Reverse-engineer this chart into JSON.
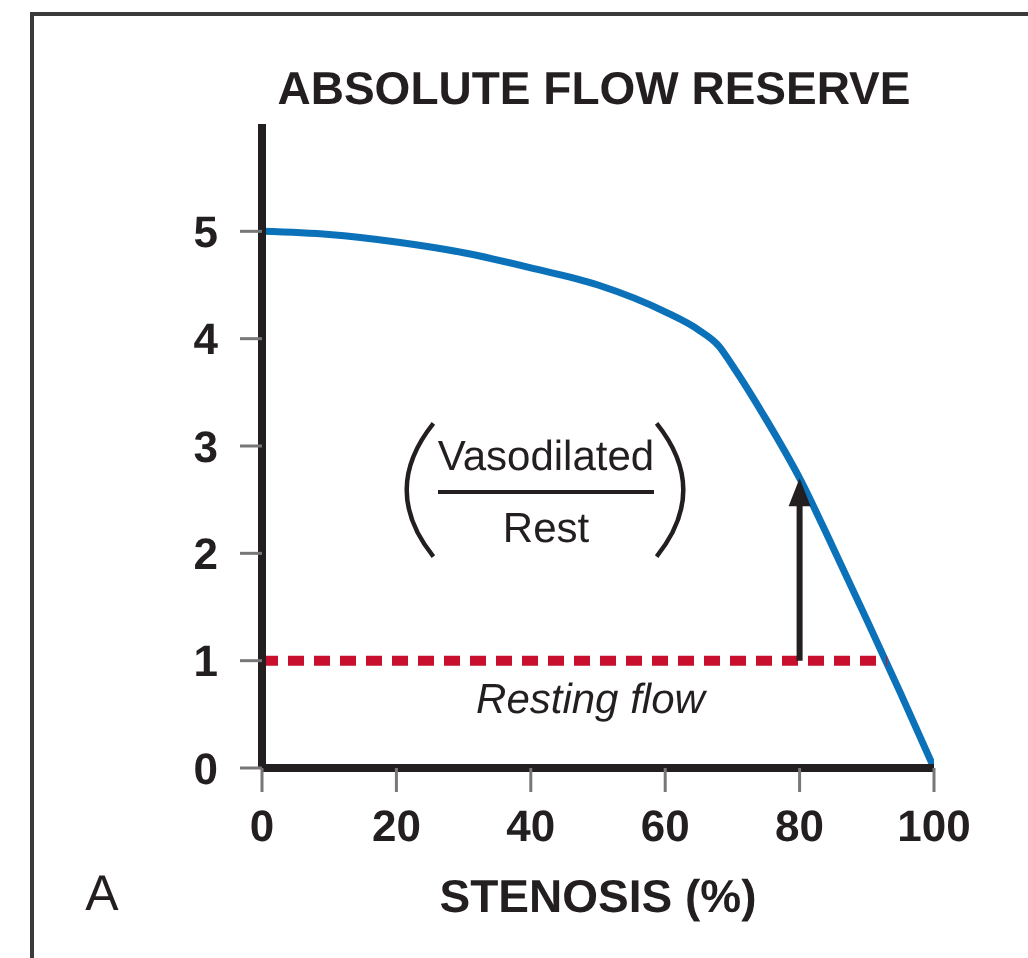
{
  "chart_data": {
    "type": "line",
    "title": "ABSOLUTE FLOW RESERVE",
    "xlabel": "STENOSIS (%)",
    "x": [
      0,
      10,
      20,
      30,
      40,
      50,
      60,
      65,
      68,
      70,
      75,
      80,
      85,
      90,
      95,
      100
    ],
    "series": [
      {
        "color": "#0b72b9",
        "values": [
          5,
          4.97,
          4.9,
          4.8,
          4.66,
          4.5,
          4.25,
          4.08,
          3.93,
          3.75,
          3.25,
          2.7,
          2.05,
          1.38,
          0.7,
          0
        ]
      },
      {
        "name": "Resting flow",
        "color": "#c8102e",
        "x": [
          0,
          93
        ],
        "values": [
          1,
          1
        ],
        "line_style": "dashed"
      }
    ],
    "xlim": [
      0,
      100
    ],
    "xticks": [
      0,
      20,
      40,
      60,
      80,
      100
    ],
    "ylim": [
      0,
      6
    ],
    "yticks": [
      0,
      1,
      2,
      3,
      4,
      5
    ],
    "annotations": [
      "Vasodilated",
      "Rest",
      "A"
    ]
  }
}
